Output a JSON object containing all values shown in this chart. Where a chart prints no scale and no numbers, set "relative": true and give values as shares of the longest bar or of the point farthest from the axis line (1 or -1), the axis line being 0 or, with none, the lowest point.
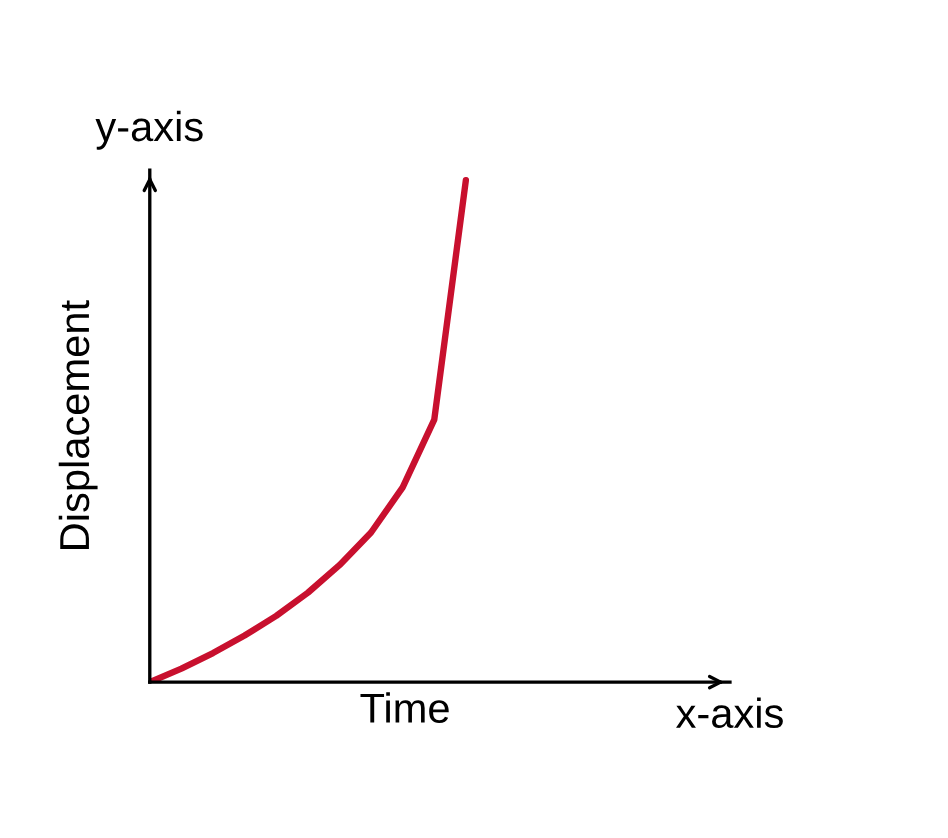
{
  "chart_data": {
    "type": "line",
    "relative": true,
    "xlabel": "Time",
    "ylabel": "Displacement",
    "annotations": [
      "y-axis",
      "x-axis"
    ],
    "categories": [
      null,
      null,
      null,
      null,
      null,
      null,
      null,
      null,
      null,
      null,
      null
    ],
    "series": [
      {
        "color": "#c8102e",
        "values": [
          0,
          0.027,
          0.058,
          0.093,
          0.132,
          0.178,
          0.233,
          0.298,
          0.388,
          0.523,
          1
        ]
      }
    ],
    "legend": false,
    "marker": "none",
    "line_style": "solid"
  }
}
